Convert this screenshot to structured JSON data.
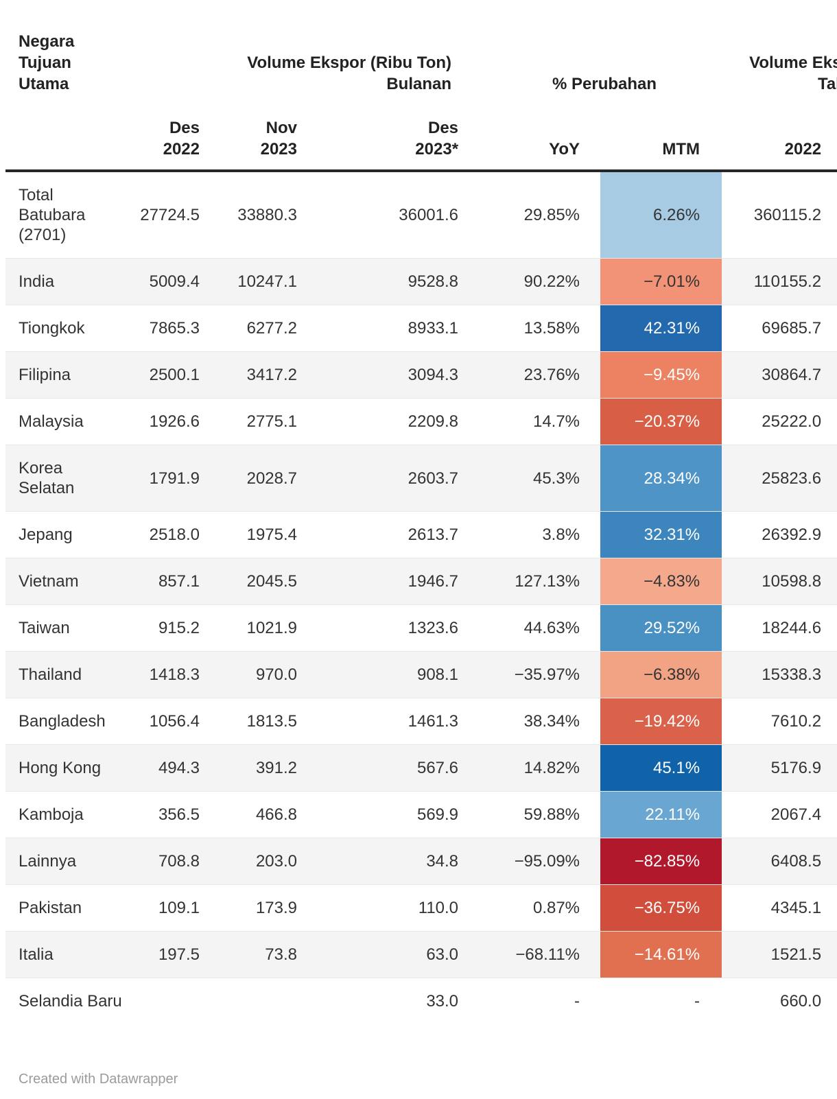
{
  "chart_data": {
    "type": "table",
    "corner_header": "Negara\nTujuan\nUtama",
    "column_groups": [
      {
        "label": "Volume Ekspor (Ribu Ton)\nBulanan",
        "span": 3
      },
      {
        "label": "% Perubahan",
        "span": 2
      },
      {
        "label": "Volume Ekspor (Ribu Ton)\nTahunan",
        "span": 2
      }
    ],
    "columns": [
      "Des\n2022",
      "Nov\n2023",
      "Des\n2023*",
      "YoY",
      "MTM",
      "2022",
      ""
    ],
    "heatmap_column": "MTM",
    "heatmap_palette": {
      "negative_max": "#b1182b",
      "positive_max": "#1063a9"
    },
    "rows": [
      {
        "country": "Total\nBatubara\n(2701)",
        "des_2022": "27724.5",
        "nov_2023": "33880.3",
        "des_2023": "36001.6",
        "yoy": "29.85%",
        "mtm": "6.26%",
        "mtm_bg": "#a6cbe3",
        "mtm_white": false,
        "y2022": "360115.2",
        "hidden": ""
      },
      {
        "country": "India",
        "des_2022": "5009.4",
        "nov_2023": "10247.1",
        "des_2023": "9528.8",
        "yoy": "90.22%",
        "mtm": "−7.01%",
        "mtm_bg": "#f29378",
        "mtm_white": false,
        "y2022": "110155.2",
        "hidden": ""
      },
      {
        "country": "Tiongkok",
        "des_2022": "7865.3",
        "nov_2023": "6277.2",
        "des_2023": "8933.1",
        "yoy": "13.58%",
        "mtm": "42.31%",
        "mtm_bg": "#2269ad",
        "mtm_white": true,
        "y2022": "69685.7",
        "hidden": ""
      },
      {
        "country": "Filipina",
        "des_2022": "2500.1",
        "nov_2023": "3417.2",
        "des_2023": "3094.3",
        "yoy": "23.76%",
        "mtm": "−9.45%",
        "mtm_bg": "#ec8262",
        "mtm_white": true,
        "y2022": "30864.7",
        "hidden": ""
      },
      {
        "country": "Malaysia",
        "des_2022": "1926.6",
        "nov_2023": "2775.1",
        "des_2023": "2209.8",
        "yoy": "14.7%",
        "mtm": "−20.37%",
        "mtm_bg": "#d85e45",
        "mtm_white": true,
        "y2022": "25222.0",
        "hidden": ""
      },
      {
        "country": "Korea\nSelatan",
        "des_2022": "1791.9",
        "nov_2023": "2028.7",
        "des_2023": "2603.7",
        "yoy": "45.3%",
        "mtm": "28.34%",
        "mtm_bg": "#4f94c6",
        "mtm_white": true,
        "y2022": "25823.6",
        "hidden": ""
      },
      {
        "country": "Jepang",
        "des_2022": "2518.0",
        "nov_2023": "1975.4",
        "des_2023": "2613.7",
        "yoy": "3.8%",
        "mtm": "32.31%",
        "mtm_bg": "#3c86bd",
        "mtm_white": true,
        "y2022": "26392.9",
        "hidden": ""
      },
      {
        "country": "Vietnam",
        "des_2022": "857.1",
        "nov_2023": "2045.5",
        "des_2023": "1946.7",
        "yoy": "127.13%",
        "mtm": "−4.83%",
        "mtm_bg": "#f4a98c",
        "mtm_white": false,
        "y2022": "10598.8",
        "hidden": ""
      },
      {
        "country": "Taiwan",
        "des_2022": "915.2",
        "nov_2023": "1021.9",
        "des_2023": "1323.6",
        "yoy": "44.63%",
        "mtm": "29.52%",
        "mtm_bg": "#4a91c3",
        "mtm_white": true,
        "y2022": "18244.6",
        "hidden": ""
      },
      {
        "country": "Thailand",
        "des_2022": "1418.3",
        "nov_2023": "970.0",
        "des_2023": "908.1",
        "yoy": "−35.97%",
        "mtm": "−6.38%",
        "mtm_bg": "#f2a384",
        "mtm_white": false,
        "y2022": "15338.3",
        "hidden": ""
      },
      {
        "country": "Bangladesh",
        "des_2022": "1056.4",
        "nov_2023": "1813.5",
        "des_2023": "1461.3",
        "yoy": "38.34%",
        "mtm": "−19.42%",
        "mtm_bg": "#da614a",
        "mtm_white": true,
        "y2022": "7610.2",
        "hidden": ""
      },
      {
        "country": "Hong Kong",
        "des_2022": "494.3",
        "nov_2023": "391.2",
        "des_2023": "567.6",
        "yoy": "14.82%",
        "mtm": "45.1%",
        "mtm_bg": "#1063a9",
        "mtm_white": true,
        "y2022": "5176.9",
        "hidden": ""
      },
      {
        "country": "Kamboja",
        "des_2022": "356.5",
        "nov_2023": "466.8",
        "des_2023": "569.9",
        "yoy": "59.88%",
        "mtm": "22.11%",
        "mtm_bg": "#69a6d1",
        "mtm_white": true,
        "y2022": "2067.4",
        "hidden": ""
      },
      {
        "country": "Lainnya",
        "des_2022": "708.8",
        "nov_2023": "203.0",
        "des_2023": "34.8",
        "yoy": "−95.09%",
        "mtm": "−82.85%",
        "mtm_bg": "#b1182b",
        "mtm_white": true,
        "y2022": "6408.5",
        "hidden": ""
      },
      {
        "country": "Pakistan",
        "des_2022": "109.1",
        "nov_2023": "173.9",
        "des_2023": "110.0",
        "yoy": "0.87%",
        "mtm": "−36.75%",
        "mtm_bg": "#d14e3c",
        "mtm_white": true,
        "y2022": "4345.1",
        "hidden": ""
      },
      {
        "country": "Italia",
        "des_2022": "197.5",
        "nov_2023": "73.8",
        "des_2023": "63.0",
        "yoy": "−68.11%",
        "mtm": "−14.61%",
        "mtm_bg": "#e17050",
        "mtm_white": true,
        "y2022": "1521.5",
        "hidden": ""
      },
      {
        "country": "Selandia Baru",
        "des_2022": "",
        "nov_2023": "",
        "des_2023": "33.0",
        "yoy": "-",
        "mtm": "-",
        "mtm_bg": null,
        "mtm_white": false,
        "y2022": "660.0",
        "hidden": ""
      }
    ]
  },
  "footer": {
    "credit": "Created with Datawrapper"
  }
}
